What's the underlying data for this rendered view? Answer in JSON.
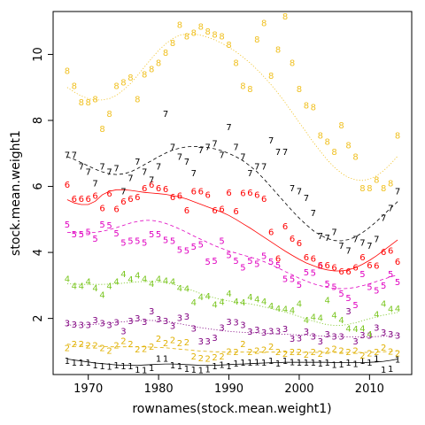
{
  "chart_data": {
    "type": "scatter",
    "xlabel": "rownames(stock.mean.weight1)",
    "ylabel": "stock.mean.weight1",
    "xlim": [
      1965,
      2016
    ],
    "ylim": [
      0.3,
      11.3
    ],
    "x_ticks": [
      1970,
      1980,
      1990,
      2000,
      2010
    ],
    "y_ticks": [
      2,
      4,
      6,
      8,
      10
    ],
    "grid": false,
    "legend": "none",
    "x": [
      1967,
      1968,
      1969,
      1970,
      1971,
      1972,
      1973,
      1974,
      1975,
      1976,
      1977,
      1978,
      1979,
      1980,
      1981,
      1982,
      1983,
      1984,
      1985,
      1986,
      1987,
      1988,
      1989,
      1990,
      1991,
      1992,
      1993,
      1994,
      1995,
      1996,
      1997,
      1998,
      1999,
      2000,
      2001,
      2002,
      2003,
      2004,
      2005,
      2006,
      2007,
      2008,
      2009,
      2010,
      2011,
      2012,
      2013,
      2014
    ],
    "series": [
      {
        "name": "1",
        "color": "#000000",
        "line": "solid",
        "values": [
          0.72,
          0.66,
          0.66,
          0.66,
          0.58,
          0.56,
          0.54,
          0.58,
          0.56,
          0.56,
          0.45,
          0.43,
          0.5,
          0.78,
          0.78,
          0.58,
          0.55,
          0.48,
          0.45,
          0.43,
          0.46,
          0.56,
          0.59,
          0.56,
          0.63,
          0.66,
          0.66,
          0.68,
          0.66,
          0.72,
          0.64,
          0.71,
          0.68,
          0.66,
          0.66,
          0.66,
          0.63,
          0.66,
          0.6,
          0.61,
          0.66,
          0.62,
          0.72,
          0.66,
          0.78,
          0.45,
          0.48,
          0.75
        ],
        "smooth": [
          0.77,
          0.74,
          0.71,
          0.68,
          0.65,
          0.63,
          0.61,
          0.59,
          0.58,
          0.58,
          0.58,
          0.59,
          0.6,
          0.61,
          0.62,
          0.62,
          0.61,
          0.6,
          0.59,
          0.58,
          0.58,
          0.58,
          0.59,
          0.6,
          0.61,
          0.62,
          0.63,
          0.64,
          0.65,
          0.66,
          0.66,
          0.67,
          0.67,
          0.67,
          0.67,
          0.67,
          0.67,
          0.67,
          0.66,
          0.66,
          0.66,
          0.66,
          0.66,
          0.67,
          0.68,
          0.7,
          0.73,
          0.77
        ]
      },
      {
        "name": "2",
        "color": "#e0b000",
        "line": "dashed",
        "values": [
          1.1,
          1.22,
          1.22,
          1.18,
          1.18,
          1.1,
          1.02,
          1.18,
          1.32,
          1.22,
          1.06,
          1.08,
          1.15,
          1.38,
          1.25,
          1.35,
          1.25,
          1.28,
          0.85,
          0.8,
          0.78,
          0.82,
          0.85,
          1.0,
          0.98,
          1.22,
          0.98,
          1.02,
          1.05,
          1.15,
          0.98,
          0.93,
          0.98,
          0.98,
          0.9,
          0.98,
          0.93,
          1.02,
          1.08,
          1.02,
          0.98,
          1.02,
          0.88,
          0.95,
          0.98,
          1.12,
          1.0,
          0.95
        ],
        "smooth": [
          1.22,
          1.2,
          1.19,
          1.17,
          1.16,
          1.15,
          1.14,
          1.14,
          1.14,
          1.14,
          1.14,
          1.14,
          1.13,
          1.12,
          1.11,
          1.09,
          1.07,
          1.05,
          1.03,
          1.01,
          1.0,
          0.99,
          0.98,
          0.98,
          0.98,
          0.98,
          0.98,
          0.98,
          0.98,
          0.98,
          0.98,
          0.98,
          0.98,
          0.97,
          0.97,
          0.97,
          0.97,
          0.97,
          0.97,
          0.97,
          0.97,
          0.97,
          0.97,
          0.97,
          0.98,
          0.99,
          1.0,
          1.02
        ]
      },
      {
        "name": "3",
        "color": "#800080",
        "line": "dotted",
        "values": [
          1.85,
          1.82,
          1.8,
          1.8,
          1.95,
          1.85,
          1.8,
          1.88,
          1.62,
          1.92,
          2.0,
          1.9,
          2.22,
          1.98,
          1.92,
          1.78,
          2.02,
          2.06,
          1.7,
          1.3,
          1.3,
          1.42,
          1.72,
          1.9,
          1.88,
          1.8,
          1.6,
          1.65,
          1.58,
          1.62,
          1.62,
          1.68,
          1.38,
          1.4,
          1.6,
          1.45,
          1.3,
          1.52,
          1.45,
          1.45,
          2.22,
          1.3,
          1.5,
          1.48,
          1.72,
          1.58,
          1.52,
          1.48
        ],
        "smooth": [
          1.8,
          1.8,
          1.8,
          1.81,
          1.82,
          1.84,
          1.86,
          1.88,
          1.9,
          1.92,
          1.93,
          1.94,
          1.94,
          1.93,
          1.91,
          1.88,
          1.84,
          1.8,
          1.76,
          1.72,
          1.69,
          1.66,
          1.63,
          1.61,
          1.59,
          1.58,
          1.57,
          1.56,
          1.55,
          1.54,
          1.53,
          1.52,
          1.51,
          1.5,
          1.49,
          1.48,
          1.47,
          1.46,
          1.45,
          1.45,
          1.44,
          1.44,
          1.44,
          1.44,
          1.45,
          1.46,
          1.48,
          1.5
        ]
      },
      {
        "name": "4",
        "color": "#7ac620",
        "line": "dotted",
        "values": [
          3.2,
          2.98,
          2.98,
          3.12,
          2.92,
          2.72,
          2.98,
          3.12,
          3.35,
          3.18,
          3.3,
          3.2,
          3.05,
          3.2,
          3.15,
          3.12,
          2.92,
          2.9,
          2.48,
          2.65,
          2.68,
          2.42,
          2.5,
          2.75,
          2.52,
          2.48,
          2.65,
          2.58,
          2.52,
          2.38,
          2.3,
          2.28,
          2.25,
          2.45,
          1.95,
          2.05,
          2.02,
          2.55,
          2.1,
          1.95,
          1.7,
          1.68,
          1.7,
          1.52,
          2.12,
          2.45,
          2.28,
          2.3
        ],
        "smooth": [
          3.05,
          3.04,
          3.03,
          3.03,
          3.03,
          3.03,
          3.04,
          3.05,
          3.07,
          3.09,
          3.11,
          3.12,
          3.12,
          3.11,
          3.08,
          3.04,
          2.98,
          2.91,
          2.83,
          2.75,
          2.68,
          2.62,
          2.57,
          2.53,
          2.5,
          2.47,
          2.44,
          2.4,
          2.35,
          2.3,
          2.25,
          2.2,
          2.13,
          2.06,
          1.99,
          1.92,
          1.86,
          1.81,
          1.79,
          1.79,
          1.82,
          1.87,
          1.93,
          1.99,
          2.05,
          2.1,
          2.14,
          2.18
        ]
      },
      {
        "name": "5",
        "color": "#e000c0",
        "line": "dashed",
        "values": [
          4.85,
          4.55,
          4.55,
          4.62,
          4.42,
          4.85,
          4.82,
          4.58,
          4.3,
          4.35,
          4.35,
          4.3,
          4.55,
          4.55,
          4.38,
          4.35,
          4.08,
          4.05,
          4.18,
          4.25,
          3.72,
          3.75,
          4.35,
          3.92,
          3.75,
          3.55,
          3.75,
          3.65,
          3.9,
          3.72,
          3.62,
          3.2,
          3.2,
          3.02,
          3.4,
          3.38,
          3.6,
          3.05,
          2.95,
          2.75,
          2.62,
          2.4,
          3.35,
          2.95,
          2.85,
          3.0,
          3.35,
          3.1
        ],
        "smooth": [
          4.61,
          4.6,
          4.59,
          4.59,
          4.61,
          4.64,
          4.69,
          4.75,
          4.82,
          4.89,
          4.94,
          4.97,
          4.97,
          4.94,
          4.88,
          4.8,
          4.71,
          4.61,
          4.5,
          4.4,
          4.3,
          4.2,
          4.12,
          4.04,
          3.98,
          3.92,
          3.86,
          3.8,
          3.72,
          3.63,
          3.53,
          3.42,
          3.32,
          3.22,
          3.13,
          3.05,
          2.99,
          2.94,
          2.91,
          2.9,
          2.91,
          2.94,
          2.99,
          3.05,
          3.12,
          3.19,
          3.26,
          3.32
        ]
      },
      {
        "name": "6",
        "color": "#ff0000",
        "line": "solid",
        "values": [
          6.05,
          5.62,
          5.62,
          5.62,
          5.72,
          5.35,
          5.78,
          5.32,
          5.55,
          5.62,
          5.68,
          5.95,
          6.05,
          5.95,
          5.92,
          5.68,
          5.72,
          5.28,
          5.85,
          5.85,
          5.75,
          5.28,
          5.32,
          5.82,
          5.25,
          5.8,
          5.82,
          5.75,
          5.62,
          4.62,
          3.82,
          4.8,
          4.42,
          4.28,
          3.85,
          3.82,
          3.62,
          3.62,
          3.55,
          3.42,
          3.42,
          3.55,
          3.85,
          3.62,
          3.6,
          4.02,
          4.05,
          3.72
        ],
        "smooth": [
          5.6,
          5.5,
          5.45,
          5.45,
          5.55,
          5.75,
          5.85,
          5.9,
          5.9,
          5.88,
          5.85,
          5.82,
          5.8,
          5.78,
          5.76,
          5.72,
          5.68,
          5.62,
          5.54,
          5.46,
          5.38,
          5.3,
          5.22,
          5.12,
          5.0,
          4.87,
          4.74,
          4.6,
          4.46,
          4.32,
          4.18,
          4.04,
          3.91,
          3.79,
          3.68,
          3.6,
          3.52,
          3.47,
          3.44,
          3.44,
          3.47,
          3.54,
          3.64,
          3.76,
          3.9,
          4.06,
          4.22,
          4.38
        ]
      },
      {
        "name": "7",
        "color": "#000000",
        "line": "dashed",
        "values": [
          6.95,
          6.95,
          6.6,
          6.45,
          6.1,
          6.6,
          6.45,
          6.55,
          5.85,
          6.25,
          6.75,
          6.45,
          6.2,
          6.6,
          8.2,
          7.2,
          6.9,
          6.75,
          6.4,
          7.1,
          7.2,
          7.3,
          6.95,
          7.8,
          7.2,
          6.9,
          6.4,
          6.6,
          6.6,
          7.4,
          7.05,
          7.05,
          5.95,
          5.85,
          5.65,
          5.2,
          4.5,
          4.45,
          4.62,
          4.2,
          4.05,
          4.4,
          4.3,
          4.2,
          4.4,
          5.05,
          5.35,
          5.85
        ],
        "smooth": [
          6.9,
          6.82,
          6.72,
          6.62,
          6.52,
          6.44,
          6.38,
          6.36,
          6.38,
          6.44,
          6.54,
          6.66,
          6.78,
          6.9,
          7.01,
          7.1,
          7.16,
          7.2,
          7.21,
          7.2,
          7.18,
          7.14,
          7.08,
          7.0,
          6.9,
          6.78,
          6.62,
          6.44,
          6.22,
          5.98,
          5.74,
          5.5,
          5.26,
          5.04,
          4.84,
          4.66,
          4.52,
          4.42,
          4.36,
          4.35,
          4.39,
          4.47,
          4.6,
          4.76,
          4.94,
          5.14,
          5.34,
          5.54
        ]
      },
      {
        "name": "8",
        "color": "#f0c020",
        "line": "dotted",
        "values": [
          9.5,
          9.05,
          8.55,
          8.55,
          8.65,
          7.75,
          8.2,
          9.05,
          9.15,
          9.3,
          8.65,
          9.4,
          9.55,
          9.75,
          10.05,
          10.35,
          10.9,
          10.55,
          10.65,
          10.85,
          10.7,
          10.6,
          10.55,
          10.3,
          9.75,
          9.05,
          8.95,
          10.45,
          10.95,
          9.35,
          10.15,
          11.15,
          9.75,
          8.95,
          8.45,
          8.4,
          7.55,
          7.35,
          7.05,
          7.85,
          7.25,
          6.9,
          5.95,
          5.95,
          6.2,
          5.95,
          6.1,
          7.55
        ],
        "smooth": [
          9.0,
          8.86,
          8.74,
          8.66,
          8.62,
          8.62,
          8.66,
          8.76,
          8.92,
          9.12,
          9.36,
          9.62,
          9.88,
          10.12,
          10.32,
          10.48,
          10.58,
          10.62,
          10.62,
          10.58,
          10.52,
          10.44,
          10.34,
          10.22,
          10.08,
          9.92,
          9.74,
          9.54,
          9.32,
          9.08,
          8.82,
          8.54,
          8.24,
          7.94,
          7.64,
          7.34,
          7.06,
          6.8,
          6.58,
          6.4,
          6.27,
          6.2,
          6.18,
          6.22,
          6.32,
          6.48,
          6.68,
          6.92
        ]
      }
    ]
  }
}
